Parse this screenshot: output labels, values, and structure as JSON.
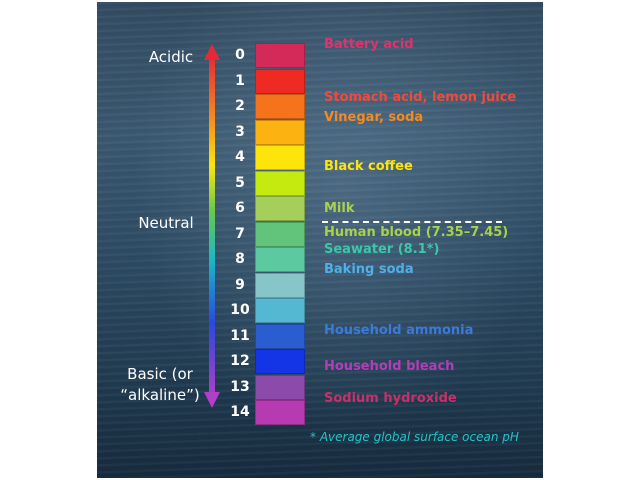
{
  "labels": {
    "acidic": "Acidic",
    "neutral": "Neutral",
    "basic_line1": "Basic (or",
    "basic_line2": "“alkaline”)"
  },
  "scale": [
    {
      "ph": "0",
      "color": "#d42a5a"
    },
    {
      "ph": "1",
      "color": "#ef2a22"
    },
    {
      "ph": "2",
      "color": "#f5731c"
    },
    {
      "ph": "3",
      "color": "#fcb312"
    },
    {
      "ph": "4",
      "color": "#fde50c"
    },
    {
      "ph": "5",
      "color": "#c5ea10"
    },
    {
      "ph": "6",
      "color": "#a4cf5a"
    },
    {
      "ph": "7",
      "color": "#62c47a"
    },
    {
      "ph": "8",
      "color": "#5cc9a0"
    },
    {
      "ph": "9",
      "color": "#86c6c9"
    },
    {
      "ph": "10",
      "color": "#55b8d2"
    },
    {
      "ph": "11",
      "color": "#2a5ed0"
    },
    {
      "ph": "12",
      "color": "#1335e6"
    },
    {
      "ph": "13",
      "color": "#8c4aaa"
    },
    {
      "ph": "14",
      "color": "#b63ab1"
    }
  ],
  "examples": [
    {
      "text": "Battery acid",
      "color": "#e0336a"
    },
    {
      "text": "Stomach acid, lemon juice",
      "color": "#f04a3c"
    },
    {
      "text": "Vinegar, soda",
      "color": "#f58a20"
    },
    {
      "text": "Black coffee",
      "color": "#fde50c"
    },
    {
      "text": "Milk",
      "color": "#a7d24a"
    },
    {
      "text": "Human blood (7.35–7.45)",
      "color": "#a7d24a"
    },
    {
      "text": "Seawater (8.1*)",
      "color": "#3cc8a8"
    },
    {
      "text": "Baking soda",
      "color": "#4fb0e8"
    },
    {
      "text": "Household ammonia",
      "color": "#3a7ad8"
    },
    {
      "text": "Household bleach",
      "color": "#b13eb8"
    },
    {
      "text": "Sodium hydroxide",
      "color": "#c8306a"
    }
  ],
  "footnote": "* Average global surface ocean pH"
}
